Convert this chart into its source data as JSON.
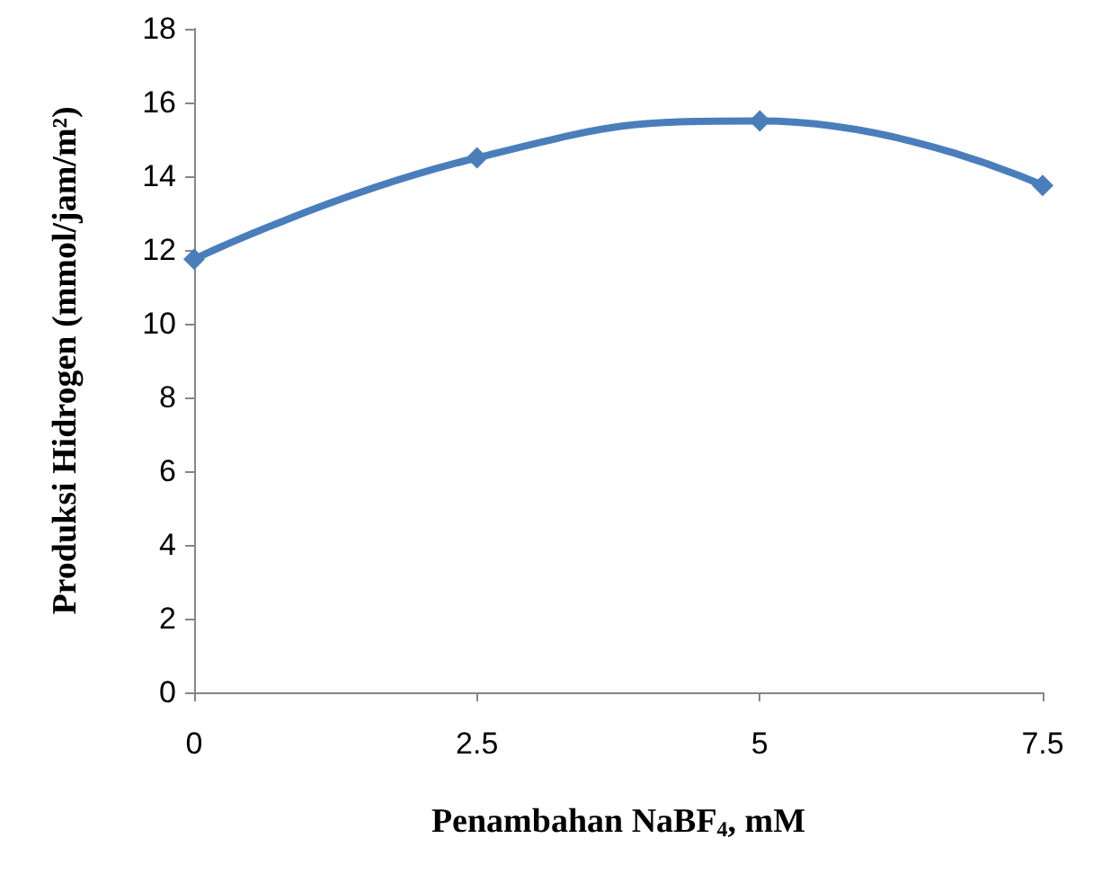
{
  "chart_data": {
    "type": "line",
    "xlabel": "Penambahan NaBF$_{4}$, mM",
    "ylabel": "Produksi Hidrogen (mmol/jam/m²)",
    "x": [
      0,
      2.5,
      5,
      7.5
    ],
    "series": [
      {
        "color": "#4a7ebb",
        "values": [
          11.75,
          14.5,
          15.5,
          13.75
        ]
      }
    ],
    "xlim": [
      0,
      7.5
    ],
    "xticks": [
      0,
      2.5,
      5,
      7.5
    ],
    "ylim": [
      0,
      18
    ],
    "yticks": [
      0,
      2,
      4,
      6,
      8,
      10,
      12,
      14,
      16,
      18
    ],
    "marker": "diamond",
    "line_style": "solid"
  }
}
